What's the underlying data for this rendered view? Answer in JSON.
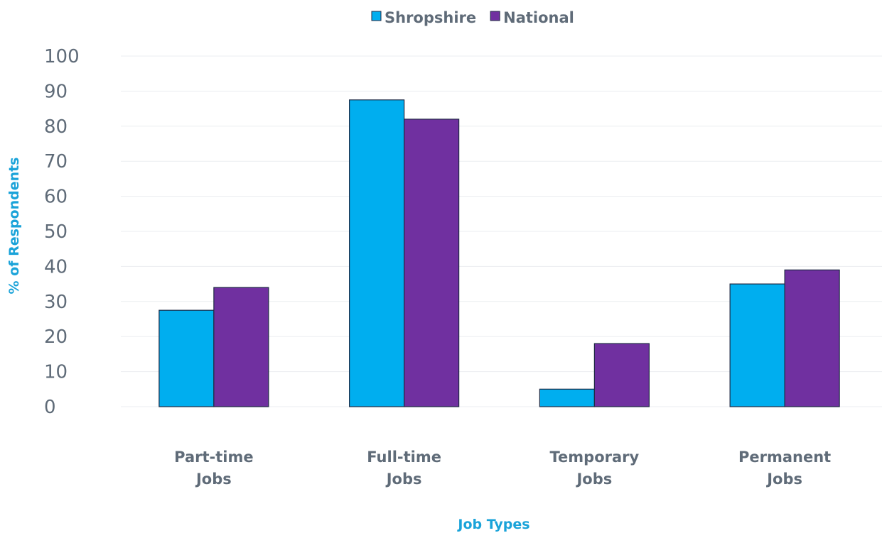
{
  "chart_data": {
    "type": "bar",
    "categories": [
      [
        "Part-time",
        "Jobs"
      ],
      [
        "Full-time",
        "Jobs"
      ],
      [
        "Temporary",
        "Jobs"
      ],
      [
        "Permanent",
        "Jobs"
      ]
    ],
    "series": [
      {
        "name": "Shropshire",
        "color": "#00aeef",
        "values": [
          27.5,
          87.5,
          5,
          35
        ]
      },
      {
        "name": "National",
        "color": "#7030a0",
        "values": [
          34,
          82,
          18,
          39
        ]
      }
    ],
    "xlabel": "Job Types",
    "ylabel": "% of Respondents",
    "ylim": [
      0,
      100
    ],
    "yticks": [
      0,
      10,
      20,
      30,
      40,
      50,
      60,
      70,
      80,
      90,
      100
    ],
    "grid": true,
    "legend_position": "top-center",
    "axis_title_color": "#1aa3d9"
  }
}
